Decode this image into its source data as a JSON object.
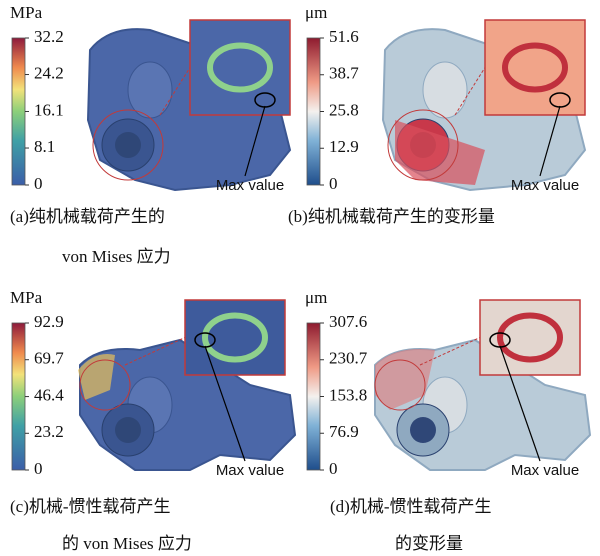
{
  "panels": [
    {
      "unit": "MPa",
      "colorbar_ticks": [
        32.2,
        24.2,
        16.1,
        8.1,
        0
      ],
      "annotation": "Max value",
      "caption": [
        "(a)纯机械载荷产生的",
        "von Mises 应力"
      ]
    },
    {
      "unit": "μm",
      "colorbar_ticks": [
        51.6,
        38.7,
        25.8,
        12.9,
        0
      ],
      "annotation": "Max value",
      "caption": [
        "(b)纯机械载荷产生的变形量"
      ]
    },
    {
      "unit": "MPa",
      "colorbar_ticks": [
        92.9,
        69.7,
        46.4,
        23.2,
        0
      ],
      "annotation": "Max value",
      "caption": [
        "(c)机械-惯性载荷产生",
        "的 von Mises 应力"
      ]
    },
    {
      "unit": "μm",
      "colorbar_ticks": [
        307.6,
        230.7,
        153.8,
        76.9,
        0
      ],
      "annotation": "Max value",
      "caption": [
        "(d)机械-惯性载荷产生",
        "的变形量"
      ]
    }
  ]
}
